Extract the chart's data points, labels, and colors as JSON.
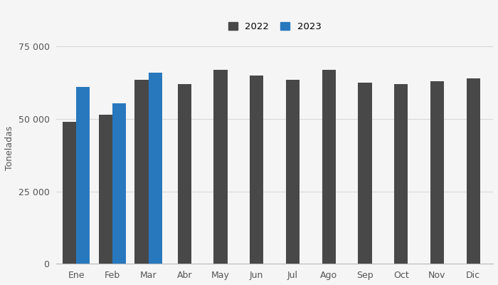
{
  "months": [
    "Ene",
    "Feb",
    "Mar",
    "Abr",
    "May",
    "Jun",
    "Jul",
    "Ago",
    "Sep",
    "Oct",
    "Nov",
    "Dic"
  ],
  "values_2022": [
    49000,
    51500,
    63500,
    62000,
    67000,
    65000,
    63500,
    67000,
    62500,
    62000,
    63000,
    64000
  ],
  "values_2023": [
    61000,
    55500,
    66000,
    null,
    null,
    null,
    null,
    null,
    null,
    null,
    null,
    null
  ],
  "color_2022": "#484848",
  "color_2023": "#2878be",
  "ylabel": "Toneladas",
  "ylim": [
    0,
    80000
  ],
  "yticks": [
    0,
    25000,
    50000,
    75000
  ],
  "ytick_labels": [
    "0",
    "25 000",
    "50 000",
    "75 000"
  ],
  "legend_2022": "2022",
  "legend_2023": "2023",
  "background_color": "#f5f5f5",
  "grid_color": "#d8d8d8"
}
